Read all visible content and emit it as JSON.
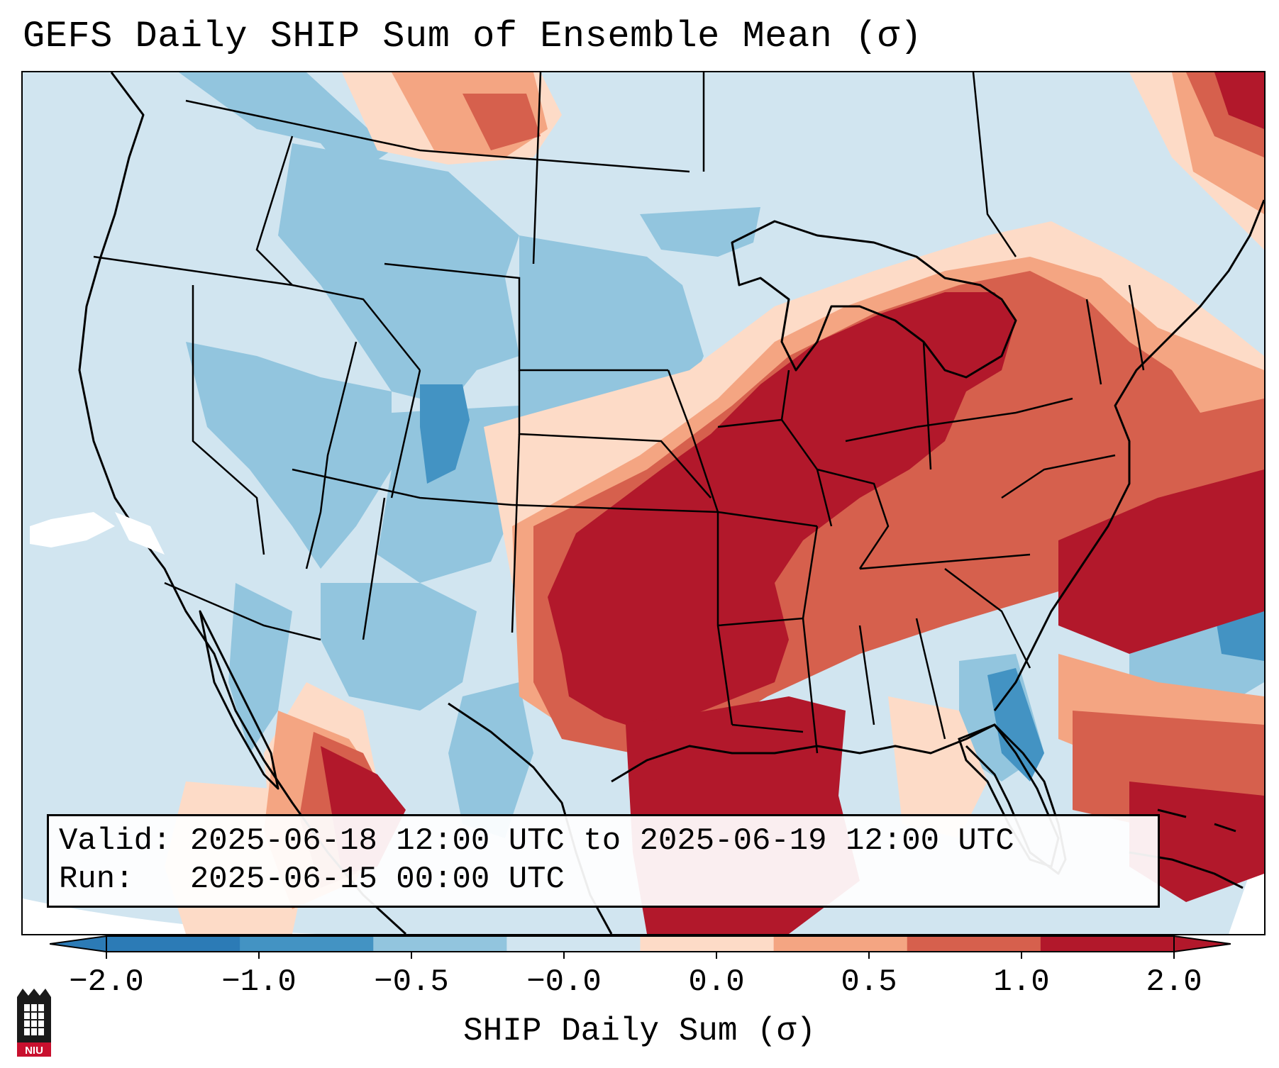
{
  "title": "GEFS Daily SHIP Sum of Ensemble Mean (σ)",
  "map": {
    "region": "Contiguous United States",
    "variable": "SHIP Daily Sum"
  },
  "info_box": {
    "valid_label": "Valid:",
    "valid_value": "2025-06-18 12:00 UTC to 2025-06-19 12:00 UTC",
    "run_label": "Run:",
    "run_value": "2025-06-15 00:00 UTC"
  },
  "colorbar": {
    "label": "SHIP Daily Sum (σ)",
    "ticks": [
      "−2.0",
      "−1.0",
      "−0.5",
      "−0.0",
      "0.0",
      "0.5",
      "1.0",
      "2.0"
    ],
    "colors": [
      "#2c7bb6",
      "#4393c3",
      "#92c5de",
      "#d1e5f0",
      "#fddbc7",
      "#f4a582",
      "#d6604d",
      "#b2182b"
    ],
    "extend": "both"
  },
  "logo": {
    "text": "NIU"
  }
}
